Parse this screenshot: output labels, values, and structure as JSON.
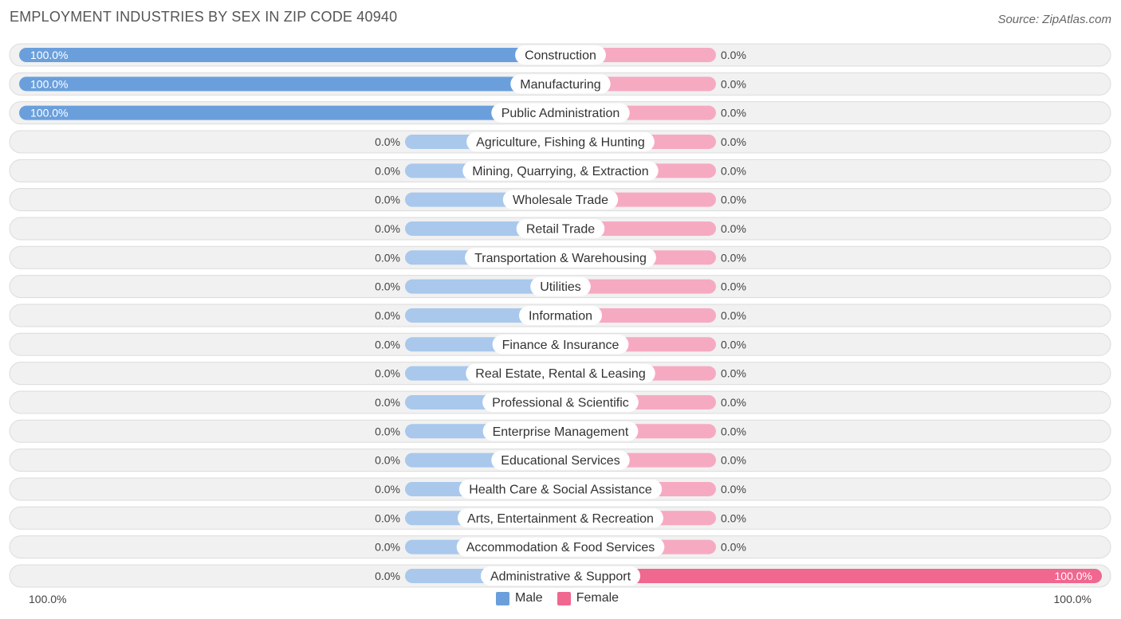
{
  "title": "EMPLOYMENT INDUSTRIES BY SEX IN ZIP CODE 40940",
  "source": "Source: ZipAtlas.com",
  "colors": {
    "male_full": "#6a9fdc",
    "male_zero": "#a9c8ec",
    "female_full": "#f0678f",
    "female_zero": "#f6aac2"
  },
  "legend": {
    "male_label": "Male",
    "female_label": "Female",
    "axis_left": "100.0%",
    "axis_right": "100.0%"
  },
  "chart_data": {
    "type": "bar",
    "title": "EMPLOYMENT INDUSTRIES BY SEX IN ZIP CODE 40940",
    "orientation": "diverging-horizontal",
    "categories": [
      "Construction",
      "Manufacturing",
      "Public Administration",
      "Agriculture, Fishing & Hunting",
      "Mining, Quarrying, & Extraction",
      "Wholesale Trade",
      "Retail Trade",
      "Transportation & Warehousing",
      "Utilities",
      "Information",
      "Finance & Insurance",
      "Real Estate, Rental & Leasing",
      "Professional & Scientific",
      "Enterprise Management",
      "Educational Services",
      "Health Care & Social Assistance",
      "Arts, Entertainment & Recreation",
      "Accommodation & Food Services",
      "Administrative & Support"
    ],
    "series": [
      {
        "name": "Male",
        "values": [
          100,
          100,
          100,
          0,
          0,
          0,
          0,
          0,
          0,
          0,
          0,
          0,
          0,
          0,
          0,
          0,
          0,
          0,
          0
        ],
        "labels": [
          "100.0%",
          "100.0%",
          "100.0%",
          "0.0%",
          "0.0%",
          "0.0%",
          "0.0%",
          "0.0%",
          "0.0%",
          "0.0%",
          "0.0%",
          "0.0%",
          "0.0%",
          "0.0%",
          "0.0%",
          "0.0%",
          "0.0%",
          "0.0%",
          "0.0%"
        ]
      },
      {
        "name": "Female",
        "values": [
          0,
          0,
          0,
          0,
          0,
          0,
          0,
          0,
          0,
          0,
          0,
          0,
          0,
          0,
          0,
          0,
          0,
          0,
          100
        ],
        "labels": [
          "0.0%",
          "0.0%",
          "0.0%",
          "0.0%",
          "0.0%",
          "0.0%",
          "0.0%",
          "0.0%",
          "0.0%",
          "0.0%",
          "0.0%",
          "0.0%",
          "0.0%",
          "0.0%",
          "0.0%",
          "0.0%",
          "0.0%",
          "0.0%",
          "100.0%"
        ]
      }
    ],
    "xlim": [
      0,
      100
    ],
    "legend_position": "bottom-center"
  }
}
